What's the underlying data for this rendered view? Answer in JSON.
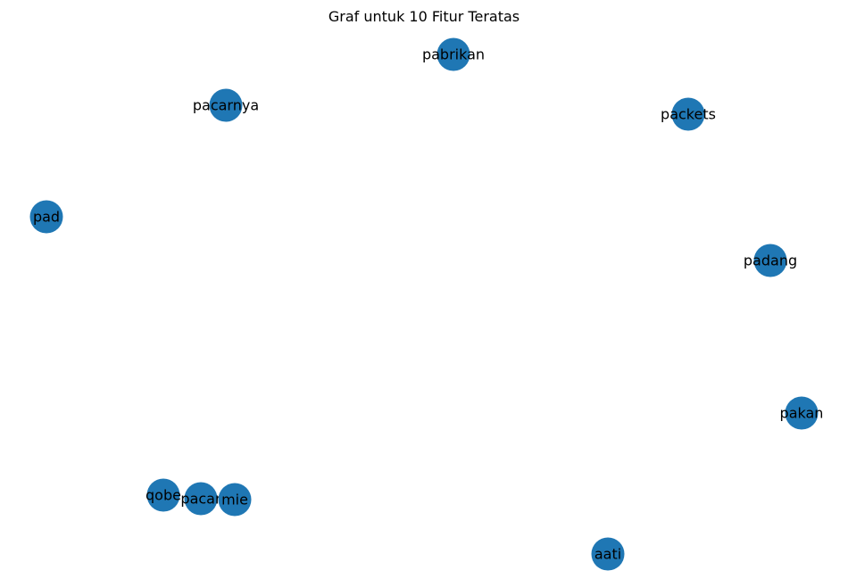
{
  "title": "Graf untuk 10 Fitur Teratas",
  "node_color": "#1f77b4",
  "label_color": "#000000",
  "nodes": [
    {
      "id": "pabrikan",
      "label": "pabrikan"
    },
    {
      "id": "pacarnya",
      "label": "pacarnya"
    },
    {
      "id": "packets",
      "label": "packets"
    },
    {
      "id": "pad",
      "label": "pad"
    },
    {
      "id": "padang",
      "label": "padang"
    },
    {
      "id": "pakan",
      "label": "pakan"
    },
    {
      "id": "qobe",
      "label": "qobe"
    },
    {
      "id": "pacar",
      "label": "pacar"
    },
    {
      "id": "mie",
      "label": "mie"
    },
    {
      "id": "aati",
      "label": "aati"
    }
  ],
  "edges": []
}
